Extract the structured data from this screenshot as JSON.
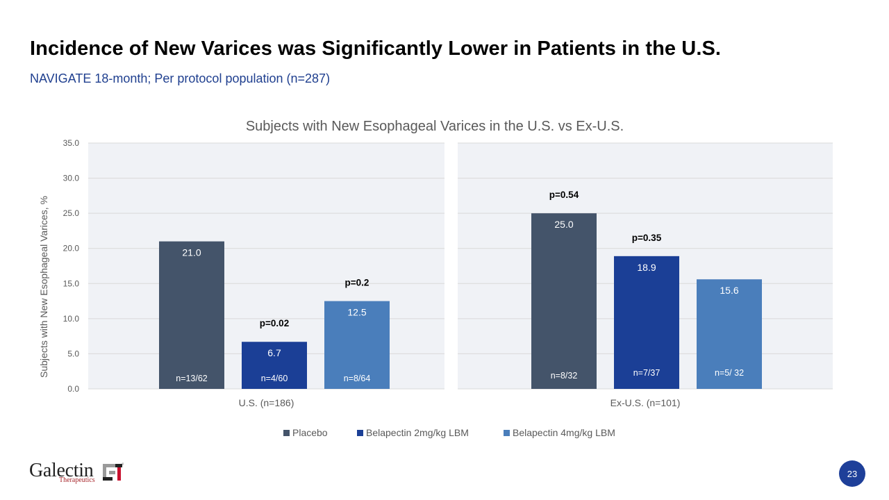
{
  "slide": {
    "title": "Incidence of New Varices was Significantly Lower in Patients in the U.S.",
    "subtitle": "NAVIGATE 18-month; Per protocol population (n=287)",
    "page_number": "23"
  },
  "logo": {
    "word": "Galectin",
    "sub": "Therapeutics",
    "mark_icon": "galectin-gt-logo-icon"
  },
  "colors": {
    "placebo": "#44546a",
    "bela2": "#1b3f96",
    "bela4": "#4a7ebb",
    "plot_bg": "#f0f2f6",
    "grid": "#d9d9d9",
    "axis_text": "#595959",
    "subtitle": "#1f3f8f",
    "page_badge": "#1e3f99"
  },
  "chart_data": {
    "type": "bar",
    "title": "Subjects with New Esophageal Varices in the U.S. vs Ex-U.S.",
    "ylabel": "Subjects with New Esophageal Varices, %",
    "xlabel": "",
    "ylim": [
      0,
      35
    ],
    "yticks": [
      "0.0",
      "5.0",
      "10.0",
      "15.0",
      "20.0",
      "25.0",
      "30.0",
      "35.0"
    ],
    "ytick_values": [
      0,
      5,
      10,
      15,
      20,
      25,
      30,
      35
    ],
    "grid": true,
    "legend_position": "bottom",
    "series_names": [
      "Placebo",
      "Belapectin 2mg/kg LBM",
      "Belapectin 4mg/kg LBM"
    ],
    "groups": [
      {
        "label": "U.S. (n=186)",
        "bars": [
          {
            "series": "Placebo",
            "value": 21.0,
            "label": "21.0",
            "n": "n=13/62",
            "p": ""
          },
          {
            "series": "Belapectin 2mg/kg LBM",
            "value": 6.7,
            "label": "6.7",
            "n": "n=4/60",
            "p": "p=0.02"
          },
          {
            "series": "Belapectin 4mg/kg LBM",
            "value": 12.5,
            "label": "12.5",
            "n": "n=8/64",
            "p": "p=0.2"
          }
        ]
      },
      {
        "label": "Ex-U.S. (n=101)",
        "bars": [
          {
            "series": "Placebo",
            "value": 25.0,
            "label": "25.0",
            "n": "n=8/32",
            "p": "p=0.54"
          },
          {
            "series": "Belapectin 2mg/kg LBM",
            "value": 18.9,
            "label": "18.9",
            "n": "n=7/37",
            "p": "p=0.35"
          },
          {
            "series": "Belapectin 4mg/kg LBM",
            "value": 15.6,
            "label": "15.6",
            "n": "n=5/ 32",
            "p": ""
          }
        ]
      }
    ]
  }
}
